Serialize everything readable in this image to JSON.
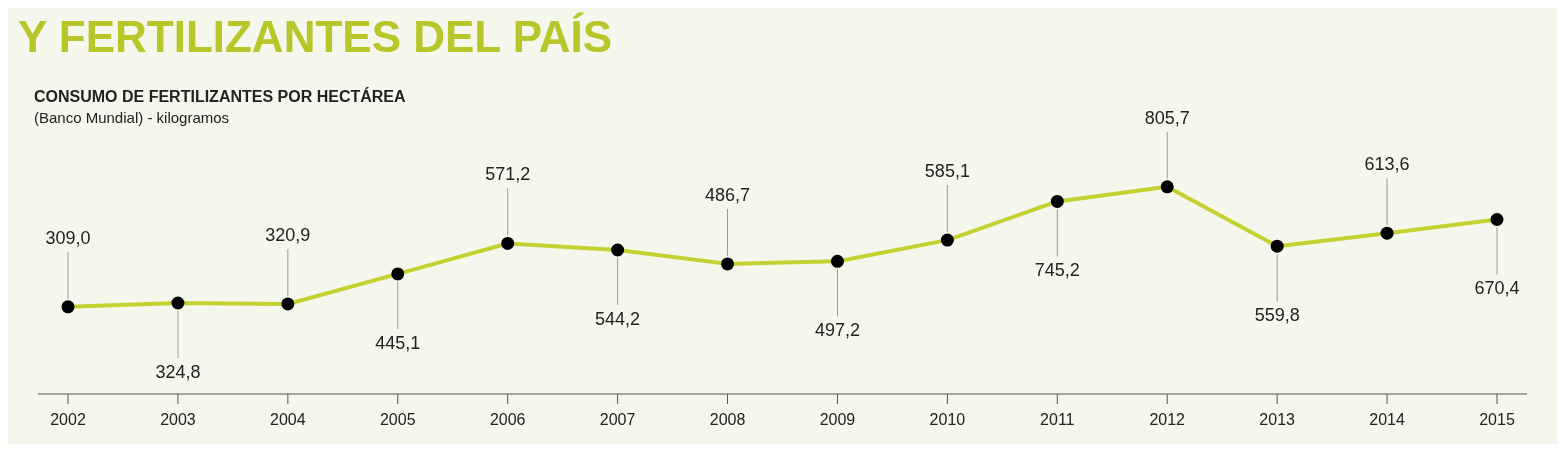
{
  "chart_data": {
    "type": "line",
    "title": "Y FERTILIZANTES DEL PAÍS",
    "subtitle": "CONSUMO DE FERTILIZANTES POR HECTÁREA",
    "annotations": [
      "(Banco Mundial) - kilogramos"
    ],
    "categories": [
      "2002",
      "2003",
      "2004",
      "2005",
      "2006",
      "2007",
      "2008",
      "2009",
      "2010",
      "2011",
      "2012",
      "2013",
      "2014",
      "2015"
    ],
    "series": [
      {
        "color": "#c5d132",
        "values": [
          309.0,
          324.8,
          320.9,
          445.1,
          571.2,
          544.2,
          486.7,
          497.2,
          585.1,
          745.2,
          805.7,
          559.8,
          613.6,
          670.4
        ],
        "value_labels": [
          "309,0",
          "324,8",
          "320,9",
          "445,1",
          "571,2",
          "544,2",
          "486,7",
          "497,2",
          "585,1",
          "745,2",
          "805,7",
          "559,8",
          "613,6",
          "670,4"
        ]
      }
    ],
    "marker": "circle",
    "line_style": "solid"
  }
}
